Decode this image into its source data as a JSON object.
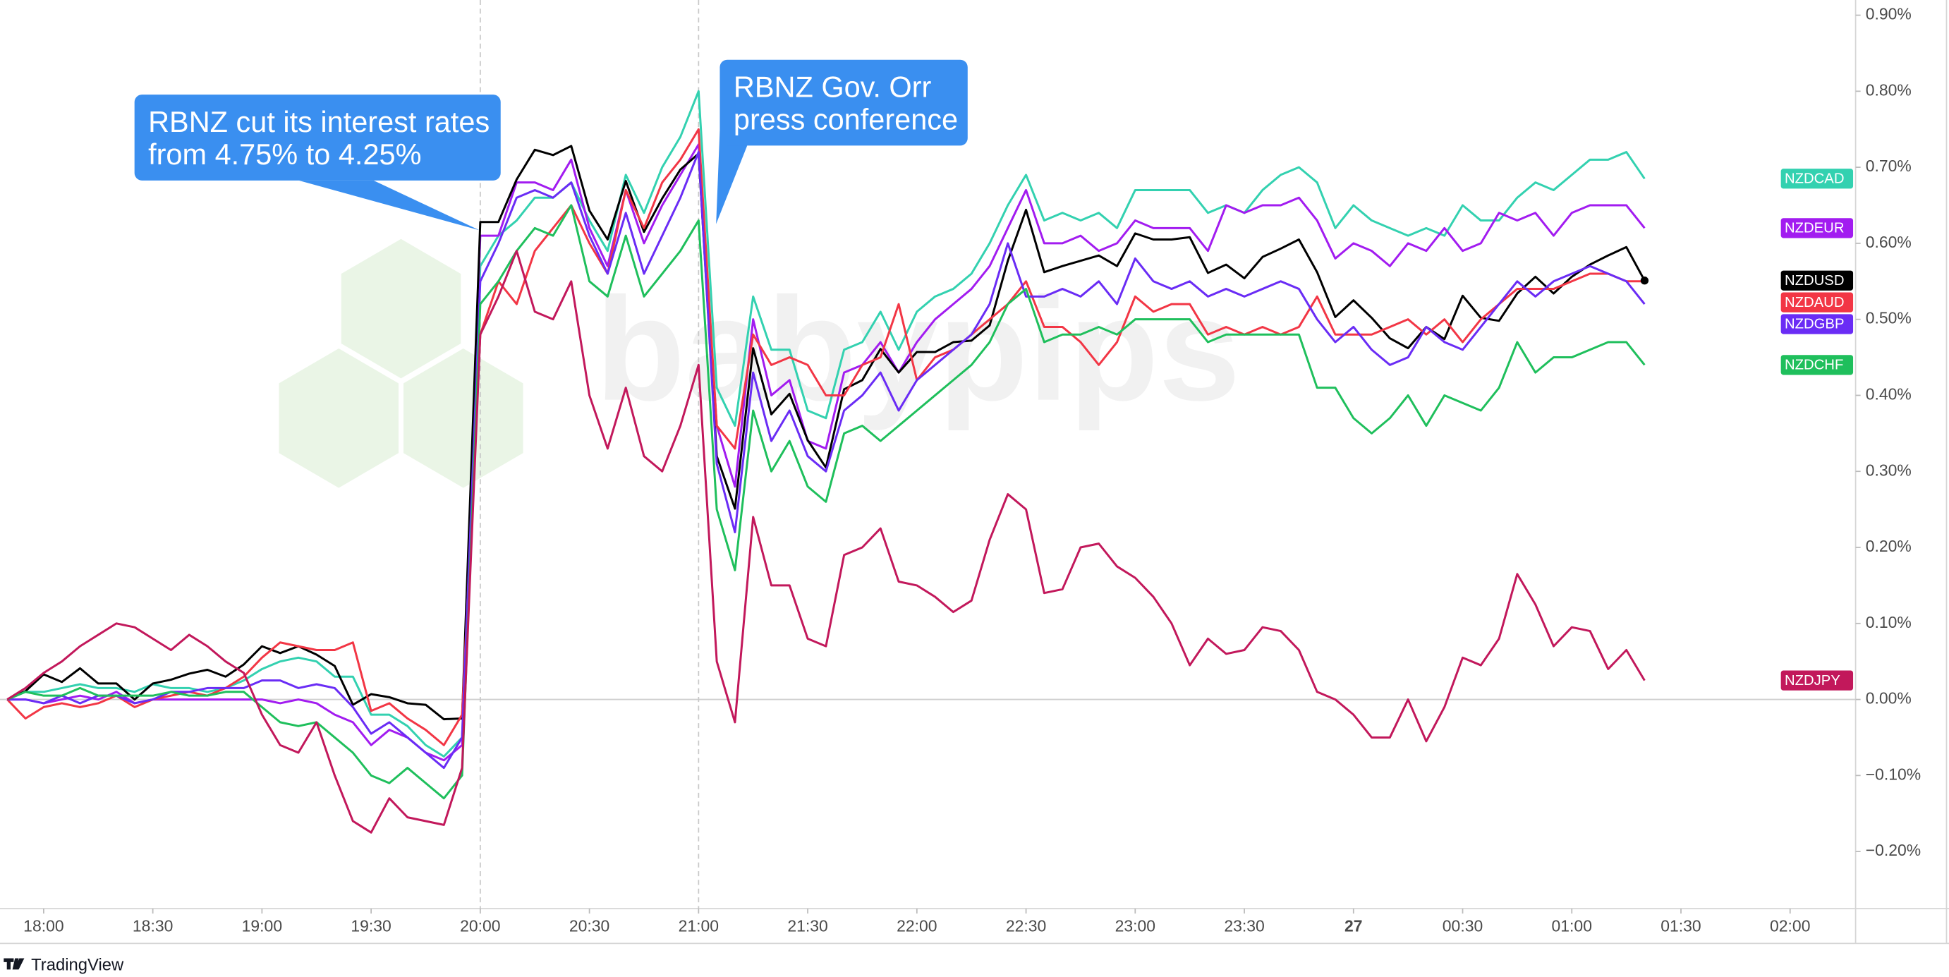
{
  "chart_data": {
    "type": "line",
    "watermark": "babypips",
    "brand": "TradingView",
    "x": [
      "17:50",
      "17:55",
      "18:00",
      "18:05",
      "18:10",
      "18:15",
      "18:20",
      "18:25",
      "18:30",
      "18:35",
      "18:40",
      "18:45",
      "18:50",
      "18:55",
      "19:00",
      "19:05",
      "19:10",
      "19:15",
      "19:20",
      "19:25",
      "19:30",
      "19:35",
      "19:40",
      "19:45",
      "19:50",
      "19:55",
      "20:00",
      "20:05",
      "20:10",
      "20:15",
      "20:20",
      "20:25",
      "20:30",
      "20:35",
      "20:40",
      "20:45",
      "20:50",
      "20:55",
      "21:00",
      "21:05",
      "21:10",
      "21:15",
      "21:20",
      "21:25",
      "21:30",
      "21:35",
      "21:40",
      "21:45",
      "21:50",
      "21:55",
      "22:00",
      "22:05",
      "22:10",
      "22:15",
      "22:20",
      "22:25",
      "22:30",
      "22:35",
      "22:40",
      "22:45",
      "22:50",
      "22:55",
      "23:00",
      "23:05",
      "23:10",
      "23:15",
      "23:20",
      "23:25",
      "23:30",
      "23:35",
      "23:40",
      "23:45",
      "23:50",
      "23:55",
      "00:00",
      "00:05",
      "00:10",
      "00:15",
      "00:20",
      "00:25",
      "00:30",
      "00:35",
      "00:40",
      "00:45",
      "00:50",
      "00:55",
      "01:00",
      "01:05",
      "01:10",
      "01:15",
      "01:20"
    ],
    "xlim": [
      "17:48",
      "02:18"
    ],
    "xticks": [
      "18:00",
      "18:30",
      "19:00",
      "19:30",
      "20:00",
      "20:30",
      "21:00",
      "21:30",
      "22:00",
      "22:30",
      "23:00",
      "23:30",
      {
        "value": "00:00",
        "label": "27"
      },
      "00:30",
      "01:00",
      "01:30",
      "02:00"
    ],
    "ylim": [
      -0.275,
      0.92
    ],
    "yticks": [
      {
        "value": -0.2,
        "label": "−0.20%"
      },
      {
        "value": -0.1,
        "label": "−0.10%"
      },
      {
        "value": 0,
        "label": "0.00%"
      },
      {
        "value": 0.1,
        "label": "0.10%"
      },
      {
        "value": 0.2,
        "label": "0.20%"
      },
      {
        "value": 0.3,
        "label": "0.30%"
      },
      {
        "value": 0.4,
        "label": "0.40%"
      },
      {
        "value": 0.5,
        "label": "0.50%"
      },
      {
        "value": 0.6,
        "label": "0.60%"
      },
      {
        "value": 0.7,
        "label": "0.70%"
      },
      {
        "value": 0.8,
        "label": "0.80%"
      },
      {
        "value": 0.9,
        "label": "0.90%"
      }
    ],
    "grid": false,
    "events": [
      {
        "time": "20:00",
        "text": [
          "RBNZ cut its interest rates",
          "from 4.75% to 4.25%"
        ]
      },
      {
        "time": "21:00",
        "text": [
          "RBNZ Gov. Orr",
          "press conference"
        ]
      }
    ],
    "series": [
      {
        "name": "NZDCAD",
        "color": "#33d1b0",
        "values": [
          0,
          0.01,
          0.01,
          0.015,
          0.02,
          0.015,
          0.015,
          0.01,
          0.02,
          0.015,
          0.015,
          0.01,
          0.015,
          0.025,
          0.04,
          0.05,
          0.055,
          0.05,
          0.03,
          0.03,
          -0.02,
          -0.02,
          -0.035,
          -0.06,
          -0.075,
          -0.05,
          0.57,
          0.61,
          0.63,
          0.66,
          0.66,
          0.68,
          0.63,
          0.59,
          0.69,
          0.64,
          0.7,
          0.74,
          0.8,
          0.41,
          0.36,
          0.53,
          0.46,
          0.46,
          0.38,
          0.37,
          0.46,
          0.47,
          0.51,
          0.46,
          0.51,
          0.53,
          0.54,
          0.56,
          0.6,
          0.65,
          0.69,
          0.63,
          0.64,
          0.63,
          0.64,
          0.62,
          0.67,
          0.67,
          0.67,
          0.67,
          0.64,
          0.65,
          0.64,
          0.67,
          0.69,
          0.7,
          0.68,
          0.62,
          0.65,
          0.63,
          0.62,
          0.61,
          0.62,
          0.61,
          0.65,
          0.63,
          0.63,
          0.66,
          0.68,
          0.67,
          0.69,
          0.71,
          0.71,
          0.72,
          0.685
        ]
      },
      {
        "name": "NZDEUR",
        "color": "#a21cf0",
        "values": [
          0,
          0,
          -0.005,
          0,
          0.005,
          0,
          0.01,
          -0.005,
          0,
          0,
          0,
          0,
          0,
          0,
          0,
          -0.005,
          0,
          -0.005,
          -0.02,
          -0.03,
          -0.06,
          -0.04,
          -0.05,
          -0.07,
          -0.08,
          -0.06,
          0.61,
          0.61,
          0.68,
          0.68,
          0.67,
          0.71,
          0.62,
          0.57,
          0.67,
          0.6,
          0.65,
          0.69,
          0.73,
          0.36,
          0.28,
          0.5,
          0.4,
          0.42,
          0.34,
          0.33,
          0.43,
          0.44,
          0.47,
          0.43,
          0.47,
          0.5,
          0.52,
          0.54,
          0.57,
          0.62,
          0.67,
          0.6,
          0.6,
          0.61,
          0.59,
          0.6,
          0.63,
          0.62,
          0.62,
          0.62,
          0.59,
          0.65,
          0.64,
          0.65,
          0.65,
          0.66,
          0.63,
          0.58,
          0.6,
          0.59,
          0.57,
          0.6,
          0.59,
          0.62,
          0.59,
          0.6,
          0.64,
          0.63,
          0.64,
          0.61,
          0.64,
          0.65,
          0.65,
          0.65,
          0.62
        ]
      },
      {
        "name": "NZDUSD",
        "color": "#000000",
        "values": [
          0,
          0.011,
          0.033,
          0.023,
          0.041,
          0.021,
          0.021,
          0,
          0.021,
          0.026,
          0.034,
          0.039,
          0.03,
          0.046,
          0.07,
          0.061,
          0.07,
          0.059,
          0.044,
          -0.007,
          0.007,
          0.003,
          -0.005,
          -0.007,
          -0.026,
          -0.025,
          0.628,
          0.628,
          0.684,
          0.723,
          0.716,
          0.728,
          0.643,
          0.605,
          0.682,
          0.615,
          0.659,
          0.697,
          0.718,
          0.32,
          0.251,
          0.462,
          0.375,
          0.402,
          0.341,
          0.305,
          0.408,
          0.42,
          0.461,
          0.43,
          0.457,
          0.457,
          0.47,
          0.472,
          0.492,
          0.577,
          0.644,
          0.562,
          0.57,
          0.577,
          0.584,
          0.57,
          0.613,
          0.605,
          0.605,
          0.608,
          0.561,
          0.572,
          0.554,
          0.582,
          0.593,
          0.605,
          0.562,
          0.503,
          0.525,
          0.502,
          0.475,
          0.462,
          0.49,
          0.474,
          0.531,
          0.502,
          0.498,
          0.534,
          0.556,
          0.534,
          0.556,
          0.572,
          0.584,
          0.595,
          0.551
        ]
      },
      {
        "name": "NZDAUD",
        "color": "#f23645",
        "values": [
          0,
          -0.025,
          -0.01,
          -0.005,
          -0.01,
          -0.005,
          0.005,
          -0.01,
          0,
          0.005,
          0.01,
          0.005,
          0.015,
          0.03,
          0.055,
          0.075,
          0.07,
          0.065,
          0.065,
          0.075,
          -0.015,
          -0.005,
          -0.025,
          -0.04,
          -0.06,
          -0.02,
          0.48,
          0.55,
          0.52,
          0.59,
          0.62,
          0.65,
          0.6,
          0.56,
          0.67,
          0.62,
          0.68,
          0.71,
          0.75,
          0.36,
          0.33,
          0.48,
          0.44,
          0.45,
          0.44,
          0.4,
          0.4,
          0.44,
          0.45,
          0.52,
          0.42,
          0.45,
          0.46,
          0.48,
          0.5,
          0.52,
          0.55,
          0.49,
          0.49,
          0.47,
          0.44,
          0.47,
          0.53,
          0.51,
          0.52,
          0.52,
          0.48,
          0.49,
          0.48,
          0.49,
          0.48,
          0.49,
          0.53,
          0.48,
          0.48,
          0.48,
          0.49,
          0.5,
          0.48,
          0.5,
          0.47,
          0.5,
          0.52,
          0.54,
          0.54,
          0.54,
          0.55,
          0.56,
          0.56,
          0.55,
          0.55
        ]
      },
      {
        "name": "NZDGBP",
        "color": "#6a2cf5",
        "values": [
          0,
          0,
          -0.005,
          0.005,
          -0.005,
          0.005,
          0.005,
          -0.005,
          0,
          0.01,
          0.01,
          0.015,
          0.015,
          0.015,
          0.025,
          0.025,
          0.015,
          0.02,
          0.015,
          -0.01,
          -0.045,
          -0.03,
          -0.05,
          -0.07,
          -0.09,
          -0.05,
          0.55,
          0.6,
          0.66,
          0.67,
          0.66,
          0.68,
          0.61,
          0.56,
          0.64,
          0.56,
          0.61,
          0.66,
          0.72,
          0.31,
          0.22,
          0.43,
          0.34,
          0.38,
          0.32,
          0.3,
          0.38,
          0.4,
          0.43,
          0.38,
          0.42,
          0.44,
          0.46,
          0.48,
          0.52,
          0.6,
          0.53,
          0.53,
          0.54,
          0.53,
          0.55,
          0.52,
          0.58,
          0.55,
          0.54,
          0.55,
          0.53,
          0.54,
          0.53,
          0.54,
          0.55,
          0.54,
          0.5,
          0.47,
          0.49,
          0.46,
          0.44,
          0.45,
          0.49,
          0.47,
          0.46,
          0.49,
          0.52,
          0.55,
          0.53,
          0.55,
          0.56,
          0.57,
          0.56,
          0.55,
          0.52
        ]
      },
      {
        "name": "NZDCHF",
        "color": "#1fbf5c",
        "values": [
          0,
          0.01,
          0.005,
          0.005,
          0.015,
          0.005,
          0.005,
          0.005,
          0.005,
          0.01,
          0.005,
          0.005,
          0.01,
          0.01,
          -0.01,
          -0.03,
          -0.035,
          -0.03,
          -0.05,
          -0.07,
          -0.1,
          -0.11,
          -0.09,
          -0.11,
          -0.13,
          -0.1,
          0.52,
          0.55,
          0.59,
          0.62,
          0.61,
          0.65,
          0.55,
          0.53,
          0.61,
          0.53,
          0.56,
          0.59,
          0.63,
          0.25,
          0.17,
          0.38,
          0.3,
          0.34,
          0.28,
          0.26,
          0.35,
          0.36,
          0.34,
          0.36,
          0.38,
          0.4,
          0.42,
          0.44,
          0.47,
          0.52,
          0.54,
          0.47,
          0.48,
          0.48,
          0.49,
          0.48,
          0.5,
          0.5,
          0.5,
          0.5,
          0.47,
          0.48,
          0.48,
          0.48,
          0.48,
          0.48,
          0.41,
          0.41,
          0.37,
          0.35,
          0.37,
          0.4,
          0.36,
          0.4,
          0.39,
          0.38,
          0.41,
          0.47,
          0.43,
          0.45,
          0.45,
          0.46,
          0.47,
          0.47,
          0.44
        ]
      },
      {
        "name": "NZDJPY",
        "color": "#c2185b",
        "values": [
          0,
          0.015,
          0.035,
          0.05,
          0.07,
          0.085,
          0.1,
          0.095,
          0.08,
          0.065,
          0.085,
          0.07,
          0.05,
          0.035,
          -0.02,
          -0.06,
          -0.07,
          -0.03,
          -0.1,
          -0.16,
          -0.175,
          -0.13,
          -0.155,
          -0.16,
          -0.165,
          -0.09,
          0.48,
          0.53,
          0.59,
          0.51,
          0.5,
          0.55,
          0.4,
          0.33,
          0.41,
          0.32,
          0.3,
          0.36,
          0.44,
          0.05,
          -0.03,
          0.24,
          0.15,
          0.15,
          0.08,
          0.07,
          0.19,
          0.2,
          0.225,
          0.155,
          0.15,
          0.135,
          0.115,
          0.13,
          0.21,
          0.27,
          0.25,
          0.14,
          0.145,
          0.2,
          0.205,
          0.175,
          0.16,
          0.135,
          0.1,
          0.045,
          0.08,
          0.06,
          0.065,
          0.095,
          0.09,
          0.065,
          0.01,
          0.0,
          -0.02,
          -0.05,
          -0.05,
          0.0,
          -0.055,
          -0.01,
          0.055,
          0.045,
          0.08,
          0.165,
          0.125,
          0.07,
          0.095,
          0.09,
          0.04,
          0.065,
          0.025
        ]
      }
    ]
  }
}
